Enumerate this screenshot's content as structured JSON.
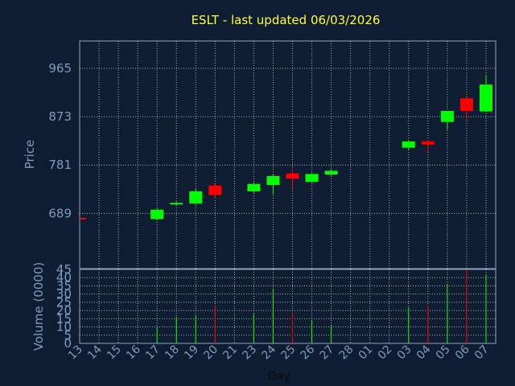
{
  "chart_data": {
    "type": "candlestick",
    "title": "ESLT - last updated 06/03/2026",
    "xlabel": "Day",
    "price_panel": {
      "ylabel": "Price",
      "ylim": [
        584,
        1017
      ],
      "yticks": [
        689,
        781,
        873,
        965
      ],
      "grid": true
    },
    "volume_panel": {
      "ylabel": "Volume (0000)",
      "ylim": [
        0,
        45
      ],
      "yticks": [
        0,
        5,
        10,
        15,
        20,
        25,
        30,
        35,
        40,
        45
      ],
      "grid": true
    },
    "x_tick_labels": [
      "13",
      "14",
      "15",
      "16",
      "17",
      "18",
      "19",
      "20",
      "21",
      "23",
      "24",
      "25",
      "26",
      "27",
      "28",
      "01",
      "02",
      "03",
      "04",
      "05",
      "06",
      "07"
    ],
    "candles": [
      {
        "x": 0,
        "open": null,
        "high": null,
        "low": null,
        "close": 679,
        "volume": 0,
        "direction": "down"
      },
      {
        "x": 4,
        "open": 678,
        "high": 698,
        "low": 676,
        "close": 696,
        "volume": 10,
        "direction": "up"
      },
      {
        "x": 5,
        "open": 707,
        "high": 711,
        "low": 705,
        "close": 709,
        "volume": 16,
        "direction": "up"
      },
      {
        "x": 6,
        "open": 708,
        "high": 737,
        "low": 706,
        "close": 731,
        "volume": 17,
        "direction": "up"
      },
      {
        "x": 7,
        "open": 742,
        "high": 745,
        "low": 717,
        "close": 724,
        "volume": 23,
        "direction": "down"
      },
      {
        "x": 9,
        "open": 731,
        "high": 748,
        "low": 728,
        "close": 745,
        "volume": 18,
        "direction": "up"
      },
      {
        "x": 10,
        "open": 743,
        "high": 763,
        "low": 725,
        "close": 760,
        "volume": 33,
        "direction": "up"
      },
      {
        "x": 11,
        "open": 765,
        "high": 775,
        "low": 738,
        "close": 755,
        "volume": 19,
        "direction": "down"
      },
      {
        "x": 12,
        "open": 749,
        "high": 766,
        "low": 748,
        "close": 764,
        "volume": 14,
        "direction": "up"
      },
      {
        "x": 13,
        "open": 763,
        "high": 774,
        "low": 761,
        "close": 770,
        "volume": 11,
        "direction": "up"
      },
      {
        "x": 17,
        "open": 814,
        "high": 828,
        "low": 809,
        "close": 826,
        "volume": 22,
        "direction": "up"
      },
      {
        "x": 18,
        "open": 826,
        "high": 829,
        "low": 806,
        "close": 820,
        "volume": 23,
        "direction": "down"
      },
      {
        "x": 19,
        "open": 863,
        "high": 884,
        "low": 848,
        "close": 884,
        "volume": 36,
        "direction": "up"
      },
      {
        "x": 20,
        "open": 908,
        "high": 910,
        "low": 867,
        "close": 884,
        "volume": 45,
        "direction": "down"
      },
      {
        "x": 21,
        "open": 883,
        "high": 952,
        "low": 882,
        "close": 934,
        "volume": 42,
        "direction": "up"
      }
    ],
    "colors": {
      "up": "#00ff00",
      "down": "#ff0000",
      "background": "#0f1d33",
      "title": "#ffff33",
      "axis_text": "#7f9bbd",
      "grid": "#ffffff"
    }
  }
}
